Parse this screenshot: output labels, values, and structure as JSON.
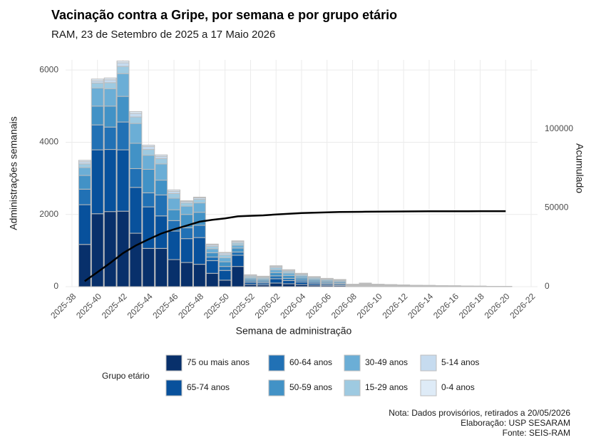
{
  "chart_data": {
    "type": "bar",
    "stacked": true,
    "title": "Vacinação contra a Gripe, por semana e por grupo etário",
    "subtitle": "RAM, 23 de Setembro de 2025 a 17 Maio 2026",
    "x_label": "Semana de administração",
    "y_label": "Administrações semanais",
    "y2_label": "Acumulado",
    "legend_title": "Grupo etário",
    "notes": [
      "Nota: Dados provisórios, retirados a 20/05/2026",
      "Elaboração: USP SESARAM",
      "Fonte: SEIS-RAM"
    ],
    "categories": [
      "2025-38",
      null,
      "2025-40",
      null,
      "2025-42",
      null,
      "2025-44",
      null,
      "2025-46",
      null,
      "2025-48",
      null,
      "2025-50",
      null,
      "2025-52",
      null,
      "2026-02",
      null,
      "2026-04",
      null,
      "2026-06",
      null,
      "2026-08",
      null,
      "2026-10",
      null,
      "2026-12",
      null,
      "2026-14",
      null,
      "2026-16",
      null,
      "2026-18",
      null,
      "2026-20",
      null,
      "2026-22"
    ],
    "series": [
      {
        "name": "75 ou mais anos",
        "color": "#08306b",
        "values": [
          null,
          1170,
          2020,
          2080,
          2090,
          1480,
          1060,
          1060,
          750,
          670,
          620,
          370,
          180,
          560,
          60,
          50,
          100,
          80,
          60,
          45,
          35,
          30,
          10,
          15,
          10,
          9,
          8,
          6,
          5,
          4,
          4,
          3,
          2,
          2,
          2,
          null,
          null
        ]
      },
      {
        "name": "65-74 anos",
        "color": "#08519c",
        "values": [
          null,
          1100,
          1770,
          1720,
          1700,
          1270,
          1150,
          900,
          790,
          660,
          740,
          350,
          270,
          310,
          60,
          50,
          120,
          90,
          70,
          50,
          40,
          35,
          12,
          18,
          12,
          10,
          8,
          7,
          6,
          5,
          4,
          3,
          3,
          2,
          2,
          null,
          null
        ]
      },
      {
        "name": "60-64 anos",
        "color": "#2171b5",
        "values": [
          null,
          430,
          690,
          620,
          770,
          520,
          390,
          580,
          290,
          300,
          340,
          100,
          110,
          90,
          40,
          35,
          80,
          60,
          50,
          40,
          30,
          28,
          10,
          14,
          10,
          9,
          7,
          6,
          5,
          5,
          4,
          3,
          2,
          1,
          1,
          null,
          null
        ]
      },
      {
        "name": "50-59 anos",
        "color": "#4292c6",
        "values": [
          null,
          380,
          520,
          580,
          710,
          700,
          650,
          410,
          300,
          370,
          360,
          120,
          130,
          110,
          50,
          45,
          90,
          80,
          60,
          45,
          40,
          35,
          12,
          18,
          12,
          10,
          9,
          7,
          6,
          5,
          4,
          3,
          3,
          2,
          2,
          null,
          null
        ]
      },
      {
        "name": "30-49 anos",
        "color": "#6baed6",
        "values": [
          null,
          220,
          500,
          480,
          630,
          550,
          390,
          450,
          320,
          230,
          260,
          110,
          110,
          80,
          40,
          40,
          80,
          70,
          55,
          40,
          35,
          30,
          10,
          15,
          10,
          9,
          8,
          6,
          6,
          5,
          4,
          3,
          2,
          1,
          1,
          null,
          null
        ]
      },
      {
        "name": "15-29 anos",
        "color": "#9ecae1",
        "values": [
          null,
          100,
          140,
          170,
          200,
          180,
          160,
          150,
          130,
          90,
          100,
          70,
          80,
          60,
          40,
          35,
          60,
          50,
          40,
          35,
          30,
          25,
          10,
          12,
          10,
          8,
          6,
          5,
          4,
          4,
          3,
          3,
          2,
          1,
          1,
          null,
          null
        ]
      },
      {
        "name": "5-14 anos",
        "color": "#c6dbef",
        "values": [
          null,
          60,
          60,
          80,
          100,
          100,
          80,
          60,
          60,
          40,
          40,
          40,
          50,
          40,
          25,
          20,
          30,
          25,
          20,
          15,
          12,
          10,
          4,
          5,
          4,
          3,
          2,
          2,
          2,
          1,
          1,
          1,
          1,
          1,
          1,
          null,
          null
        ]
      },
      {
        "name": "0-4 anos",
        "color": "#deebf7",
        "values": [
          null,
          40,
          50,
          50,
          50,
          50,
          40,
          40,
          40,
          20,
          20,
          20,
          20,
          20,
          15,
          15,
          20,
          15,
          15,
          10,
          8,
          7,
          2,
          3,
          2,
          2,
          2,
          1,
          1,
          1,
          1,
          1,
          0,
          0,
          0,
          null,
          null
        ]
      }
    ],
    "line": {
      "axis": "y2",
      "color": "#000000",
      "values": [
        null,
        3500,
        9250,
        15030,
        21280,
        26130,
        30050,
        33700,
        36380,
        38760,
        41240,
        42420,
        43370,
        44640,
        44970,
        45260,
        45840,
        46310,
        46680,
        46960,
        47190,
        47390,
        47460,
        47560,
        47630,
        47690,
        47740,
        47780,
        47815,
        47845,
        47870,
        47890,
        47905,
        47915,
        47925,
        null,
        null
      ]
    },
    "ylim": [
      0,
      6280
    ],
    "yticks": [
      0,
      2000,
      4000,
      6000
    ],
    "y2lim": [
      0,
      143900
    ],
    "y2ticks": [
      0,
      50000,
      100000
    ],
    "grid": true
  }
}
